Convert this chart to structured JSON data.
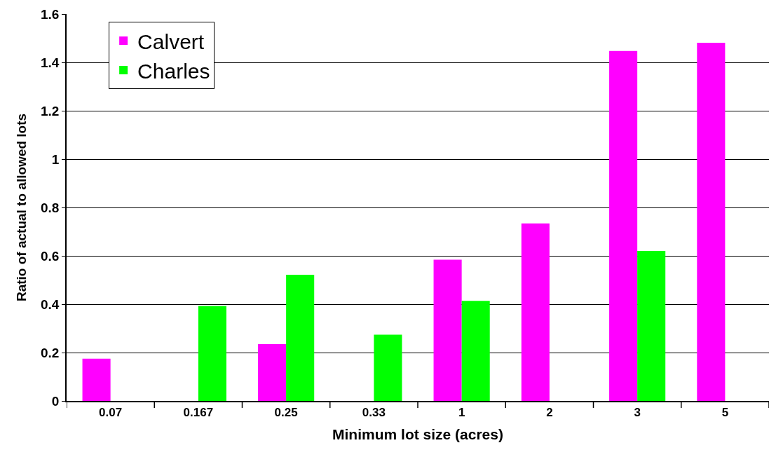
{
  "chart_data": {
    "type": "bar",
    "xlabel": "Minimum lot size (acres)",
    "ylabel": "Ratio of actual to allowed lots",
    "categories": [
      "0.07",
      "0.167",
      "0.25",
      "0.33",
      "1",
      "2",
      "3",
      "5"
    ],
    "series": [
      {
        "name": "Calvert",
        "color": "#ff00ff",
        "values": [
          0.175,
          null,
          0.235,
          null,
          0.584,
          0.734,
          1.447,
          1.481
        ]
      },
      {
        "name": "Charles",
        "color": "#00ff00",
        "values": [
          null,
          0.393,
          0.522,
          0.274,
          0.414,
          null,
          0.62,
          null
        ]
      }
    ],
    "ylim": [
      0,
      1.6
    ],
    "yticks": [
      0,
      0.2,
      0.4,
      0.6,
      0.8,
      1,
      1.2,
      1.4,
      1.6
    ],
    "grid": "y",
    "legend": "top left"
  }
}
